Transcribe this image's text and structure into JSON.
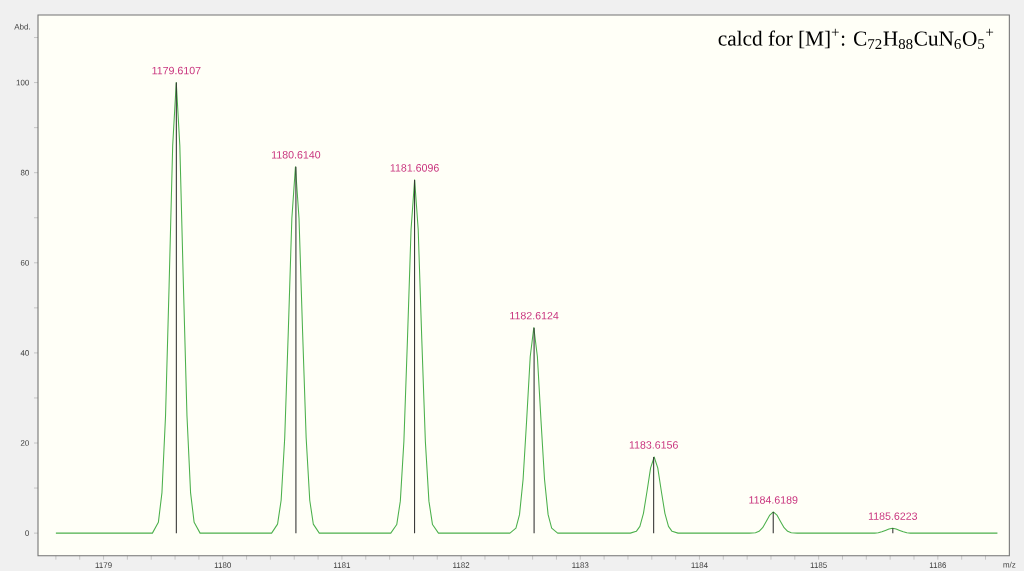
{
  "chart_data": {
    "type": "line",
    "title": "calcd for [M]$^{+}$: C$_{72}$H$_{88}$CuN$_{6}$O$_{5}$$^{+}$",
    "xlabel": "m/z",
    "ylabel": "Abd.",
    "xlim": [
      1178.45,
      1186.6
    ],
    "ylim": [
      -5,
      115
    ],
    "xticks": [
      {
        "value": 1178.6,
        "label": null
      },
      {
        "value": 1178.8,
        "label": null
      },
      1179,
      {
        "value": 1179.2,
        "label": null
      },
      {
        "value": 1179.4,
        "label": null
      },
      {
        "value": 1179.6,
        "label": null
      },
      {
        "value": 1179.8,
        "label": null
      },
      1180,
      {
        "value": 1180.2,
        "label": null
      },
      {
        "value": 1180.4,
        "label": null
      },
      {
        "value": 1180.6,
        "label": null
      },
      {
        "value": 1180.8,
        "label": null
      },
      1181,
      {
        "value": 1181.2,
        "label": null
      },
      {
        "value": 1181.4,
        "label": null
      },
      {
        "value": 1181.6,
        "label": null
      },
      {
        "value": 1181.8,
        "label": null
      },
      1182,
      {
        "value": 1182.2,
        "label": null
      },
      {
        "value": 1182.4,
        "label": null
      },
      {
        "value": 1182.6,
        "label": null
      },
      {
        "value": 1182.8,
        "label": null
      },
      1183,
      {
        "value": 1183.2,
        "label": null
      },
      {
        "value": 1183.4,
        "label": null
      },
      {
        "value": 1183.6,
        "label": null
      },
      {
        "value": 1183.8,
        "label": null
      },
      1184,
      {
        "value": 1184.2,
        "label": null
      },
      {
        "value": 1184.4,
        "label": null
      },
      {
        "value": 1184.6,
        "label": null
      },
      {
        "value": 1184.8,
        "label": null
      },
      1185,
      {
        "value": 1185.2,
        "label": null
      },
      {
        "value": 1185.4,
        "label": null
      },
      {
        "value": 1185.6,
        "label": null
      },
      {
        "value": 1185.8,
        "label": null
      },
      1186,
      {
        "value": 1186.2,
        "label": null
      },
      {
        "value": 1186.4,
        "label": null
      }
    ],
    "yticks": [
      0,
      {
        "value": 10,
        "label": null
      },
      20,
      {
        "value": 30,
        "label": null
      },
      40,
      {
        "value": 50,
        "label": null
      },
      60,
      {
        "value": 70,
        "label": null
      },
      80,
      {
        "value": 90,
        "label": null
      },
      100,
      {
        "value": 110,
        "label": null
      }
    ],
    "series": [
      {
        "color": "#4cb04c",
        "x": [
          1178.6,
          1179.41,
          1179.46,
          1179.49,
          1179.52,
          1179.55,
          1179.58,
          1179.61,
          1179.64,
          1179.67,
          1179.7,
          1179.73,
          1179.76,
          1179.81,
          1180.41,
          1180.46,
          1180.49,
          1180.52,
          1180.55,
          1180.58,
          1180.61,
          1180.64,
          1180.67,
          1180.7,
          1180.73,
          1180.76,
          1180.81,
          1181.41,
          1181.46,
          1181.49,
          1181.52,
          1181.55,
          1181.58,
          1181.61,
          1181.64,
          1181.67,
          1181.7,
          1181.73,
          1181.76,
          1181.81,
          1182.41,
          1182.46,
          1182.49,
          1182.52,
          1182.55,
          1182.58,
          1182.61,
          1182.64,
          1182.67,
          1182.7,
          1182.73,
          1182.76,
          1182.81,
          1183.42,
          1183.47,
          1183.5,
          1183.53,
          1183.56,
          1183.59,
          1183.62,
          1183.65,
          1183.68,
          1183.71,
          1183.74,
          1183.77,
          1183.82,
          1184.42,
          1184.47,
          1184.5,
          1184.53,
          1184.56,
          1184.59,
          1184.62,
          1184.65,
          1184.68,
          1184.71,
          1184.74,
          1184.77,
          1184.82,
          1185.42,
          1185.47,
          1185.5,
          1185.53,
          1185.56,
          1185.59,
          1185.62,
          1185.65,
          1185.68,
          1185.71,
          1185.74,
          1185.77,
          1185.82,
          1186.5
        ],
        "values": [
          0,
          0,
          2.4,
          9,
          26,
          55,
          86,
          100,
          86,
          55,
          26,
          9,
          2.4,
          0,
          0,
          2.0,
          7.3,
          21.1,
          44.7,
          69.9,
          81.3,
          69.9,
          44.7,
          21.1,
          7.3,
          2.0,
          0,
          0,
          1.9,
          7.1,
          20.4,
          43.1,
          67.4,
          78.4,
          67.4,
          43.1,
          20.4,
          7.1,
          1.9,
          0,
          0,
          1.1,
          4.1,
          11.9,
          25.1,
          39.2,
          45.6,
          39.2,
          25.1,
          11.9,
          4.1,
          1.1,
          0,
          0,
          0.4,
          1.5,
          4.4,
          9.3,
          14.5,
          16.9,
          14.5,
          9.3,
          4.4,
          1.5,
          0.4,
          0,
          0,
          0.1,
          0.4,
          1.2,
          2.6,
          4.0,
          4.7,
          4.0,
          2.6,
          1.2,
          0.4,
          0.1,
          0,
          0,
          0,
          0.1,
          0.3,
          0.6,
          0.9,
          1.1,
          0.9,
          0.6,
          0.3,
          0.1,
          0,
          0,
          0
        ]
      },
      {
        "type": "bar",
        "color": "#333333",
        "x": [
          1179.6107,
          1180.614,
          1181.6096,
          1182.6124,
          1183.6156,
          1184.6189,
          1185.6223
        ],
        "values": [
          100,
          81.3,
          78.4,
          45.6,
          16.9,
          4.7,
          1.1
        ]
      }
    ],
    "annotations": [
      {
        "text": "1179.6107",
        "x": 1179.6107,
        "y": 100
      },
      {
        "text": "1180.6140",
        "x": 1180.614,
        "y": 81.3
      },
      {
        "text": "1181.6096",
        "x": 1181.6096,
        "y": 78.4
      },
      {
        "text": "1182.6124",
        "x": 1182.6124,
        "y": 45.6
      },
      {
        "text": "1183.6156",
        "x": 1183.6156,
        "y": 16.9
      },
      {
        "text": "1184.6189",
        "x": 1184.6189,
        "y": 4.7
      },
      {
        "text": "1185.6223",
        "x": 1185.6223,
        "y": 1.1
      }
    ]
  }
}
